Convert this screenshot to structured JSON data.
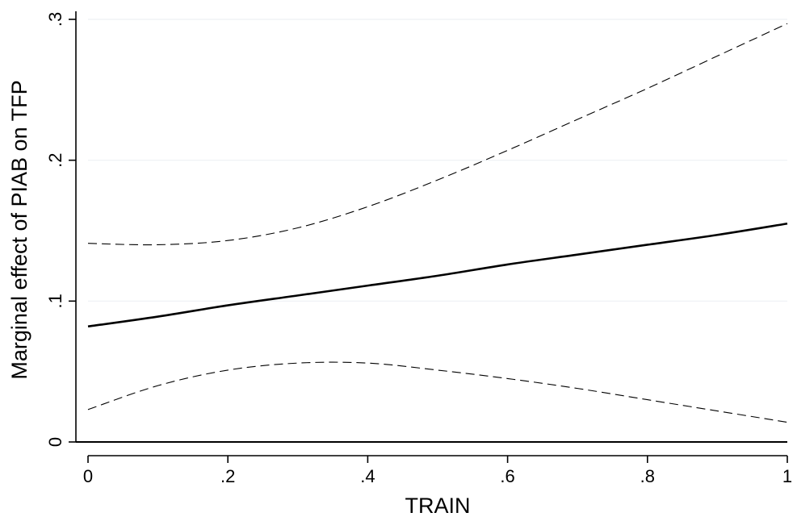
{
  "chart_data": {
    "type": "line",
    "title": "",
    "xlabel": "TRAIN",
    "ylabel": "Marginal effect of PIAB on TFP",
    "xlim": [
      0,
      1
    ],
    "ylim": [
      0,
      0.3
    ],
    "x_ticks": [
      {
        "value": 0,
        "label": "0"
      },
      {
        "value": 0.2,
        "label": ".2"
      },
      {
        "value": 0.4,
        "label": ".4"
      },
      {
        "value": 0.6,
        "label": ".6"
      },
      {
        "value": 0.8,
        "label": ".8"
      },
      {
        "value": 1,
        "label": "1"
      }
    ],
    "y_ticks": [
      {
        "value": 0,
        "label": "0"
      },
      {
        "value": 0.1,
        "label": ".1"
      },
      {
        "value": 0.2,
        "label": ".2"
      },
      {
        "value": 0.3,
        "label": ".3"
      }
    ],
    "grid": "horizontal",
    "legend": "none",
    "reference_line": {
      "axis": "y",
      "value": 0
    },
    "series": [
      {
        "style": "solid",
        "color": "#000000",
        "x": [
          0,
          0.1,
          0.2,
          0.3,
          0.4,
          0.5,
          0.6,
          0.7,
          0.8,
          0.9,
          1.0
        ],
        "y": [
          0.082,
          0.089,
          0.097,
          0.104,
          0.111,
          0.118,
          0.126,
          0.133,
          0.14,
          0.147,
          0.155
        ]
      },
      {
        "style": "dashed",
        "color": "#000000",
        "x": [
          0,
          0.1,
          0.2,
          0.3,
          0.4,
          0.5,
          0.6,
          0.7,
          0.8,
          0.9,
          1.0
        ],
        "y": [
          0.141,
          0.14,
          0.143,
          0.152,
          0.167,
          0.186,
          0.207,
          0.229,
          0.251,
          0.274,
          0.297
        ]
      },
      {
        "style": "dashed",
        "color": "#000000",
        "x": [
          0,
          0.1,
          0.2,
          0.3,
          0.4,
          0.5,
          0.6,
          0.7,
          0.8,
          0.9,
          1.0
        ],
        "y": [
          0.023,
          0.04,
          0.051,
          0.056,
          0.056,
          0.051,
          0.045,
          0.038,
          0.03,
          0.022,
          0.014
        ]
      }
    ]
  }
}
